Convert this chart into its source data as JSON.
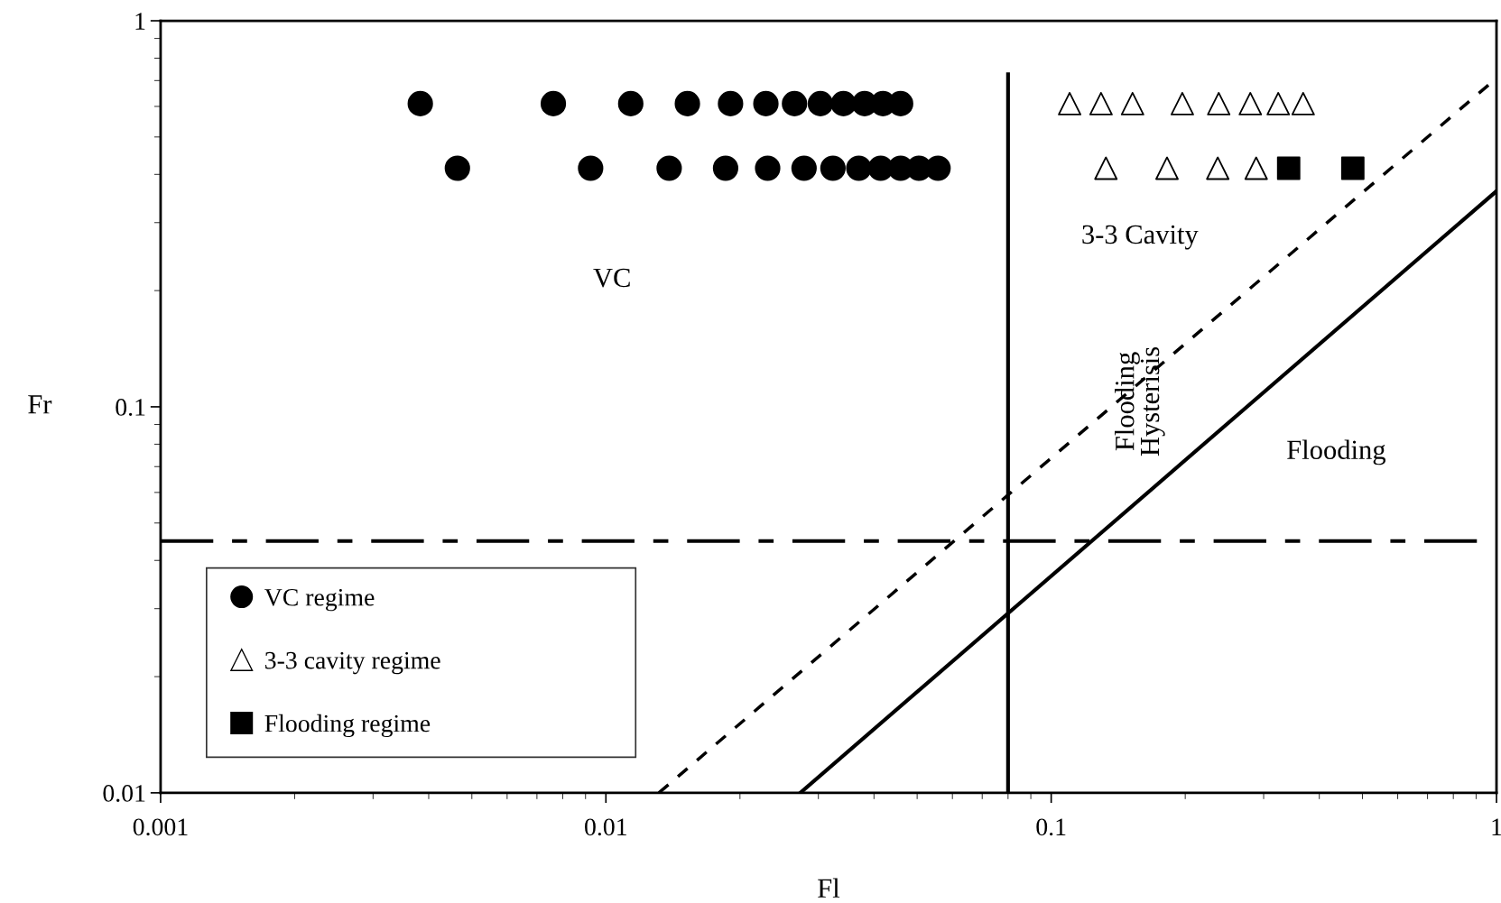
{
  "chart_data": {
    "type": "scatter",
    "xlabel": "Fl",
    "ylabel": "Fr",
    "log": "xy",
    "xlim": [
      0.001,
      1
    ],
    "ylim": [
      0.01,
      1
    ],
    "xticks": [
      0.001,
      0.01,
      0.1,
      1
    ],
    "yticks": [
      0.01,
      0.1,
      1
    ],
    "grid": false,
    "legend": "bottom left",
    "series": [
      {
        "name": "VC regime",
        "marker": "circle",
        "color": "#000000",
        "x": [
          0.00383,
          0.00762,
          0.01137,
          0.01524,
          0.01905,
          0.02287,
          0.02652,
          0.03032,
          0.03415,
          0.0381,
          0.0419,
          0.0459,
          0.00464,
          0.00924,
          0.01387,
          0.01857,
          0.02308,
          0.02786,
          0.03235,
          0.03698,
          0.0414,
          0.0459,
          0.0505,
          0.0557
        ],
        "values": [
          0.61,
          0.61,
          0.61,
          0.61,
          0.61,
          0.61,
          0.61,
          0.61,
          0.61,
          0.61,
          0.61,
          0.61,
          0.415,
          0.415,
          0.415,
          0.415,
          0.415,
          0.415,
          0.415,
          0.415,
          0.415,
          0.415,
          0.415,
          0.415
        ]
      },
      {
        "name": "3-3 cavity regime",
        "marker": "triangle",
        "color": "#000000",
        "x": [
          0.11,
          0.1294,
          0.1523,
          0.197,
          0.2378,
          0.28,
          0.3235,
          0.368,
          0.1327,
          0.182,
          0.2366,
          0.2886
        ],
        "values": [
          0.61,
          0.61,
          0.61,
          0.61,
          0.61,
          0.61,
          0.61,
          0.61,
          0.415,
          0.415,
          0.415,
          0.415
        ]
      },
      {
        "name": "Flooding regime",
        "marker": "square",
        "color": "#000000",
        "x": [
          0.3414,
          0.4757
        ],
        "values": [
          0.415,
          0.415
        ]
      },
      {
        "type": "line",
        "line_style": "solid",
        "color": "#000000",
        "x": [
          0.08,
          0.08
        ],
        "values": [
          0.01,
          0.727
        ]
      },
      {
        "type": "line",
        "line_style": "solid",
        "color": "#000000",
        "x": [
          0.02733,
          1
        ],
        "values": [
          0.01,
          0.362
        ]
      },
      {
        "type": "line",
        "line_style": "dashed",
        "color": "#000000",
        "x": [
          0.01315,
          1
        ],
        "values": [
          0.01,
          0.71
        ]
      }
    ],
    "ref_lines": [
      {
        "axis": "y",
        "value": 0.0449,
        "line_style": "dashdot",
        "color": "#000000"
      }
    ],
    "annotations": [
      "VC",
      "3-3 Cavity",
      "Flooding",
      "Flooding\nHysterisis"
    ]
  }
}
